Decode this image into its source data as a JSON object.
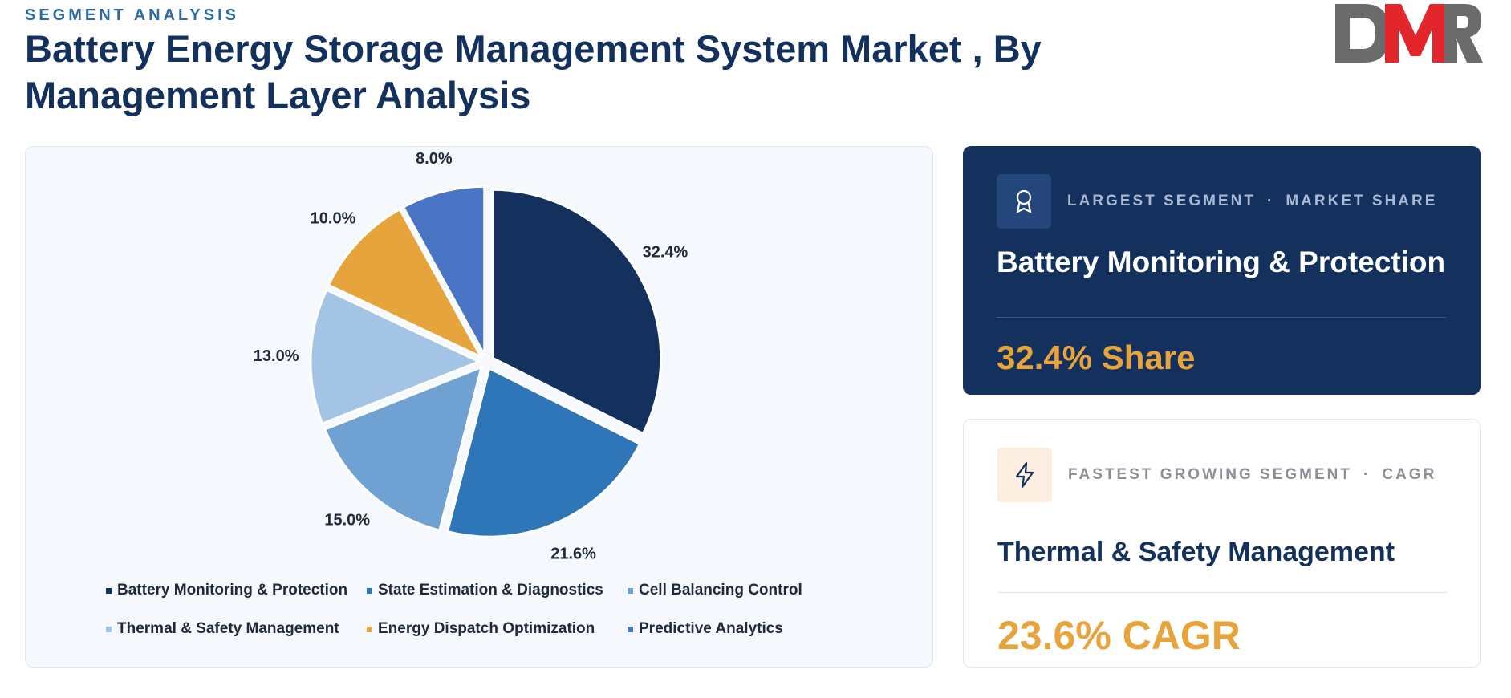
{
  "header": {
    "eyebrow": "SEGMENT ANALYSIS",
    "title": "Battery Energy Storage Management System Market , By Management Layer Analysis"
  },
  "logo": {
    "text": "DMR",
    "colors": {
      "d": "#6b6b6b",
      "m": "#e3262b",
      "r": "#6b6b6b"
    }
  },
  "chart_data": {
    "type": "pie",
    "title": "",
    "legend_position": "bottom",
    "categories": [
      "Battery Monitoring & Protection",
      "State Estimation & Diagnostics",
      "Cell Balancing Control",
      "Thermal & Safety Management",
      "Energy Dispatch Optimization",
      "Predictive Analytics"
    ],
    "values": [
      32.4,
      21.6,
      15.0,
      13.0,
      10.0,
      8.0
    ],
    "labels": [
      "32.4%",
      "21.6%",
      "15.0%",
      "13.0%",
      "10.0%",
      "8.0%"
    ],
    "colors": [
      "#13315c",
      "#2f76b8",
      "#6fa2d2",
      "#a3c4e4",
      "#e8a43c",
      "#4a74c4"
    ]
  },
  "largest_segment": {
    "icon": "award-icon",
    "label": "LARGEST SEGMENT",
    "separator": "·",
    "metric_label": "MARKET SHARE",
    "name": "Battery Monitoring & Protection",
    "value": "32.4% Share"
  },
  "fastest_segment": {
    "icon": "lightning-icon",
    "label": "FASTEST GROWING SEGMENT",
    "separator": "·",
    "metric_label": "CAGR",
    "name": "Thermal & Safety Management",
    "value": "23.6% CAGR"
  }
}
